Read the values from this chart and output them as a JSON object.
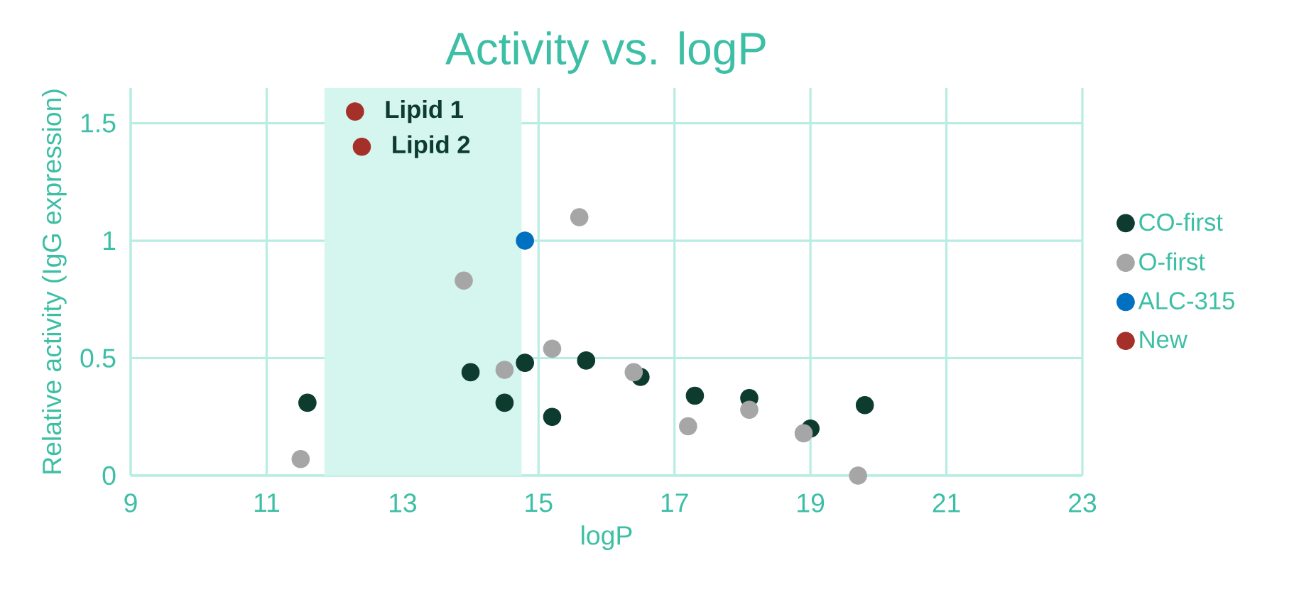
{
  "chart_data": {
    "type": "scatter",
    "title": "Activity vs. logP",
    "xlabel": "logP",
    "ylabel": "Relative activity (IgG expression)",
    "xlim": [
      9,
      23
    ],
    "xticks": [
      9,
      11,
      13,
      15,
      17,
      19,
      21,
      23
    ],
    "ylim": [
      0,
      1.65
    ],
    "yticks": [
      0,
      0.5,
      1,
      1.5
    ],
    "grid": true,
    "legend": "right",
    "marker": "circle",
    "series": [
      {
        "name": "CO-first",
        "color": "#0d3b2e",
        "x": [
          11.6,
          14.0,
          14.5,
          14.8,
          15.2,
          15.7,
          16.5,
          17.3,
          18.1,
          19.0,
          19.8
        ],
        "values": [
          0.31,
          0.44,
          0.31,
          0.48,
          0.25,
          0.49,
          0.42,
          0.34,
          0.33,
          0.2,
          0.3
        ]
      },
      {
        "name": "O-first",
        "color": "#a6a6a6",
        "x": [
          11.5,
          13.9,
          14.5,
          15.2,
          15.6,
          16.4,
          17.2,
          18.1,
          18.9,
          19.7
        ],
        "values": [
          0.07,
          0.83,
          0.45,
          0.54,
          1.1,
          0.44,
          0.21,
          0.28,
          0.18,
          0.0
        ]
      },
      {
        "name": "ALC-315",
        "color": "#0070c0",
        "x": [
          14.8
        ],
        "values": [
          1.0
        ]
      },
      {
        "name": "New",
        "color": "#a5302a",
        "x": [
          12.3,
          12.4
        ],
        "values": [
          1.55,
          1.4
        ]
      }
    ],
    "bands": [
      {
        "axis": "x",
        "from": 11.85,
        "to": 14.75,
        "color": "#d5f5ef"
      }
    ],
    "annotations": [
      {
        "text": "Lipid 1",
        "x": 12.3,
        "y": 1.55
      },
      {
        "text": "Lipid 2",
        "x": 12.4,
        "y": 1.4
      }
    ]
  }
}
